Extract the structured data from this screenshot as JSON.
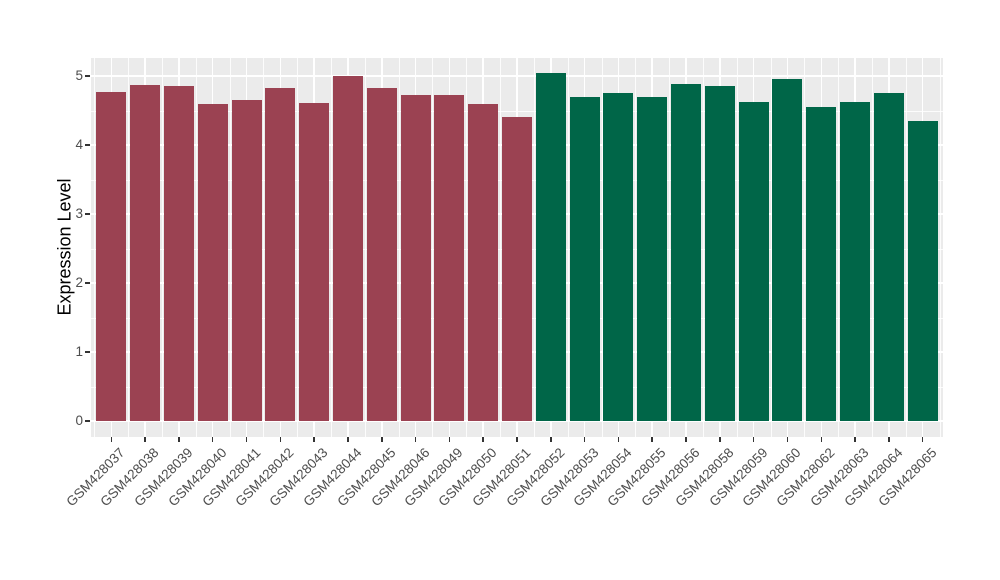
{
  "chart_data": {
    "type": "bar",
    "title": "",
    "xlabel": "",
    "ylabel": "Expression Level",
    "ylim": [
      0,
      5.29
    ],
    "yticks": [
      0,
      1,
      2,
      3,
      4,
      5
    ],
    "yminor_ticks": [
      0.5,
      1.5,
      2.5,
      3.5,
      4.5
    ],
    "grid": "major and minor white gridlines on grey panel",
    "legend_position": "none",
    "categories": [
      "GSM428037",
      "GSM428038",
      "GSM428039",
      "GSM428040",
      "GSM428041",
      "GSM428042",
      "GSM428043",
      "GSM428044",
      "GSM428045",
      "GSM428046",
      "GSM428049",
      "GSM428050",
      "GSM428051",
      "GSM428052",
      "GSM428053",
      "GSM428054",
      "GSM428055",
      "GSM428056",
      "GSM428058",
      "GSM428059",
      "GSM428060",
      "GSM428062",
      "GSM428063",
      "GSM428064",
      "GSM428065"
    ],
    "values": [
      4.77,
      4.87,
      4.85,
      4.6,
      4.65,
      4.83,
      4.61,
      5.0,
      4.83,
      4.73,
      4.72,
      4.6,
      4.41,
      5.04,
      4.7,
      4.76,
      4.7,
      4.88,
      4.85,
      4.62,
      4.96,
      4.55,
      4.63,
      4.75,
      4.35
    ],
    "groups": [
      "maroon",
      "maroon",
      "maroon",
      "maroon",
      "maroon",
      "maroon",
      "maroon",
      "maroon",
      "maroon",
      "maroon",
      "maroon",
      "maroon",
      "maroon",
      "green",
      "green",
      "green",
      "green",
      "green",
      "green",
      "green",
      "green",
      "green",
      "green",
      "green",
      "green"
    ],
    "palette": {
      "maroon": "#9B4252",
      "green": "#006648"
    },
    "theme": {
      "panel_bg": "#EBEBEB",
      "grid_color": "#FFFFFF",
      "tick_label_color": "#4D4D4D",
      "axis_title_color": "#000000",
      "tick_mark_color": "#333333",
      "page_bg": "#FFFFFF"
    }
  }
}
